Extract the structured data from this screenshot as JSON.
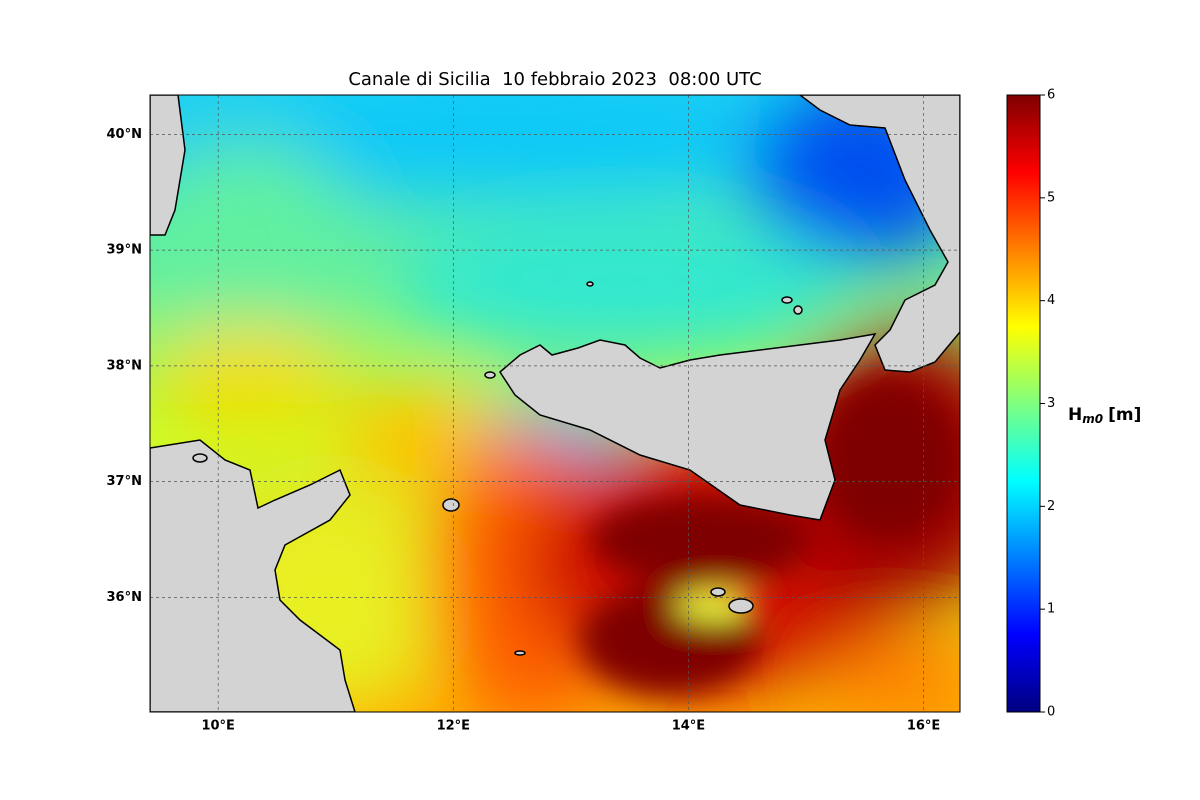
{
  "title": "Canale di Sicilia  10 febbraio 2023  08:00 UTC",
  "map": {
    "xlim": [
      9.42,
      16.31
    ],
    "ylim": [
      35.01,
      40.34
    ],
    "xticks": [
      {
        "value": 10,
        "label": "10°E"
      },
      {
        "value": 12,
        "label": "12°E"
      },
      {
        "value": 14,
        "label": "14°E"
      },
      {
        "value": 16,
        "label": "16°E"
      }
    ],
    "yticks": [
      {
        "value": 36,
        "label": "36°N"
      },
      {
        "value": 37,
        "label": "37°N"
      },
      {
        "value": 38,
        "label": "38°N"
      },
      {
        "value": 39,
        "label": "39°N"
      },
      {
        "value": 40,
        "label": "40°N"
      }
    ],
    "grid": true
  },
  "colorbar": {
    "label": "H",
    "label_subscript": "m0",
    "label_unit": "[m]",
    "lim": [
      0,
      6
    ],
    "ticks": [
      0,
      1,
      2,
      3,
      4,
      5,
      6
    ],
    "colors": [
      "#00007f",
      "#0000ff",
      "#007fff",
      "#00ffff",
      "#7fff7f",
      "#ffff00",
      "#ff7f00",
      "#ff0000",
      "#7f0000"
    ]
  }
}
